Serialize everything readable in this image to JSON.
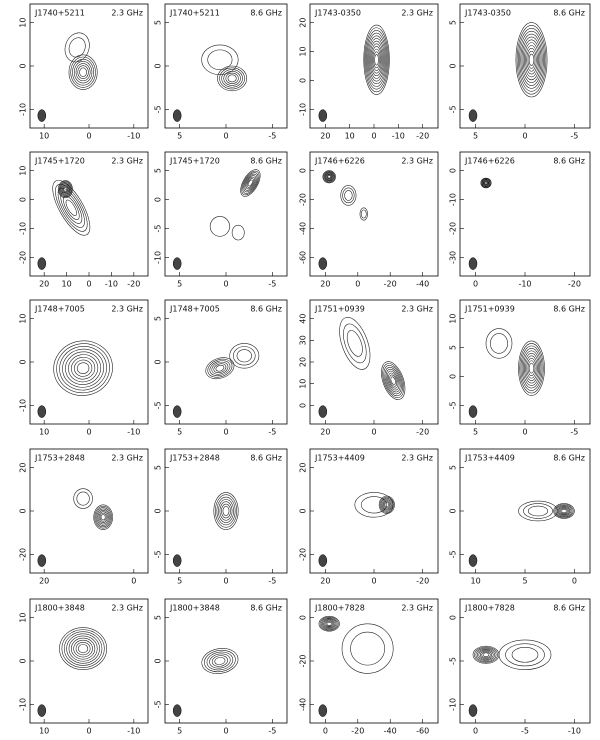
{
  "panels": [
    {
      "source": "J1740+5211",
      "frequency": "2.3 GHz",
      "xticks": [
        "10",
        "0",
        "-10"
      ],
      "yticks": [
        "10",
        "0",
        "-10"
      ]
    },
    {
      "source": "J1740+5211",
      "frequency": "8.6 GHz",
      "xticks": [
        "5",
        "0",
        "-5"
      ],
      "yticks": [
        "5",
        "0",
        "-5"
      ]
    },
    {
      "source": "J1743-0350",
      "frequency": "2.3 GHz",
      "xticks": [
        "20",
        "10",
        "0",
        "-10",
        "-20"
      ],
      "yticks": [
        "20",
        "10",
        "0",
        "-10"
      ]
    },
    {
      "source": "J1743-0350",
      "frequency": "8.6 GHz",
      "xticks": [
        "5",
        "0",
        "-5"
      ],
      "yticks": [
        "5",
        "0",
        "-5"
      ]
    },
    {
      "source": "J1745+1720",
      "frequency": "2.3 GHz",
      "xticks": [
        "20",
        "10",
        "0",
        "-10",
        "-20"
      ],
      "yticks": [
        "10",
        "0",
        "-10",
        "-20"
      ]
    },
    {
      "source": "J1745+1720",
      "frequency": "8.6 GHz",
      "xticks": [
        "5",
        "0",
        "-5"
      ],
      "yticks": [
        "5",
        "0",
        "-5",
        "-10"
      ]
    },
    {
      "source": "J1746+6226",
      "frequency": "2.3 GHz",
      "xticks": [
        "20",
        "0",
        "-20",
        "-40"
      ],
      "yticks": [
        "0",
        "-20",
        "-40",
        "-60"
      ]
    },
    {
      "source": "J1746+6226",
      "frequency": "8.6 GHz",
      "xticks": [
        "0",
        "-10",
        "-20"
      ],
      "yticks": [
        "0",
        "-10",
        "-20",
        "-30"
      ]
    },
    {
      "source": "J1748+7005",
      "frequency": "2.3 GHz",
      "xticks": [
        "10",
        "0",
        "-10"
      ],
      "yticks": [
        "10",
        "0",
        "-10"
      ]
    },
    {
      "source": "J1748+7005",
      "frequency": "8.6 GHz",
      "xticks": [
        "5",
        "0",
        "-5"
      ],
      "yticks": [
        "5",
        "0",
        "-5"
      ]
    },
    {
      "source": "J1751+0939",
      "frequency": "2.3 GHz",
      "xticks": [
        "20",
        "0",
        "-20"
      ],
      "yticks": [
        "40",
        "30",
        "20",
        "10",
        "0"
      ]
    },
    {
      "source": "J1751+0939",
      "frequency": "8.6 GHz",
      "xticks": [
        "5",
        "0",
        "-5"
      ],
      "yticks": [
        "10",
        "5",
        "0",
        "-5"
      ]
    },
    {
      "source": "J1753+2848",
      "frequency": "2.3 GHz",
      "xticks": [
        "20",
        "0"
      ],
      "yticks": [
        "20",
        "0",
        "-20"
      ]
    },
    {
      "source": "J1753+2848",
      "frequency": "8.6 GHz",
      "xticks": [
        "5",
        "0",
        "-5"
      ],
      "yticks": [
        "5",
        "0",
        "-5"
      ]
    },
    {
      "source": "J1753+4409",
      "frequency": "2.3 GHz",
      "xticks": [
        "20",
        "0",
        "-20"
      ],
      "yticks": [
        "20",
        "0",
        "-20"
      ]
    },
    {
      "source": "J1753+4409",
      "frequency": "8.6 GHz",
      "xticks": [
        "10",
        "5",
        "0"
      ],
      "yticks": [
        "5",
        "0",
        "-5"
      ]
    },
    {
      "source": "J1800+3848",
      "frequency": "2.3 GHz",
      "xticks": [
        "10",
        "0",
        "-10"
      ],
      "yticks": [
        "10",
        "0",
        "-10"
      ]
    },
    {
      "source": "J1800+3848",
      "frequency": "8.6 GHz",
      "xticks": [
        "5",
        "0",
        "-5"
      ],
      "yticks": [
        "5",
        "0",
        "-5"
      ]
    },
    {
      "source": "J1800+7828",
      "frequency": "2.3 GHz",
      "xticks": [
        "0",
        "-20",
        "-40",
        "-60"
      ],
      "yticks": [
        "0",
        "-20",
        "-40"
      ]
    },
    {
      "source": "J1800+7828",
      "frequency": "8.6 GHz",
      "xticks": [
        "0",
        "-5",
        "-10"
      ],
      "yticks": [
        "0",
        "-5",
        "-10"
      ]
    }
  ]
}
